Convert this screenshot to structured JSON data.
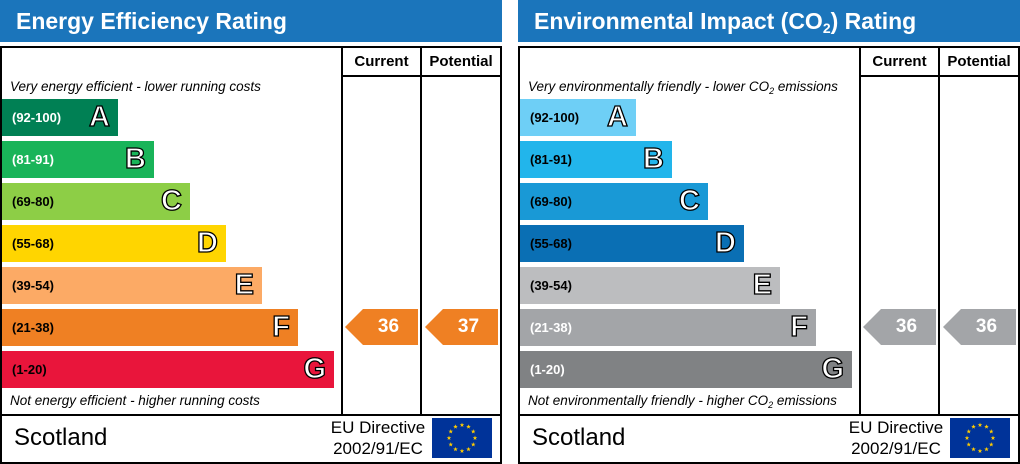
{
  "chart_data": [
    {
      "type": "bar",
      "title": "Energy Efficiency Rating",
      "columns": [
        "Current",
        "Potential"
      ],
      "top_note": "Very energy efficient - lower running costs",
      "bottom_note": "Not energy efficient - higher running costs",
      "categories": [
        "(92-100)",
        "(81-91)",
        "(69-80)",
        "(55-68)",
        "(39-54)",
        "(21-38)",
        "(1-20)"
      ],
      "bands": [
        {
          "range": "(92-100)",
          "letter": "A",
          "color": "#008054",
          "label_color": "#ffffff"
        },
        {
          "range": "(81-91)",
          "letter": "B",
          "color": "#19b459",
          "label_color": "#ffffff"
        },
        {
          "range": "(69-80)",
          "letter": "C",
          "color": "#8dce46",
          "label_color": "#000000"
        },
        {
          "range": "(55-68)",
          "letter": "D",
          "color": "#ffd500",
          "label_color": "#000000"
        },
        {
          "range": "(39-54)",
          "letter": "E",
          "color": "#fcaa65",
          "label_color": "#000000"
        },
        {
          "range": "(21-38)",
          "letter": "F",
          "color": "#ef8023",
          "label_color": "#000000"
        },
        {
          "range": "(1-20)",
          "letter": "G",
          "color": "#e9153b",
          "label_color": "#000000"
        }
      ],
      "current": {
        "value": 36,
        "band": "F",
        "color": "#ef8023"
      },
      "potential": {
        "value": 37,
        "band": "F",
        "color": "#ef8023"
      },
      "footer": {
        "country": "Scotland",
        "directive_line1": "EU Directive",
        "directive_line2": "2002/91/EC"
      }
    },
    {
      "type": "bar",
      "title_parts": [
        "Environmental Impact (CO",
        "2",
        ") Rating"
      ],
      "columns": [
        "Current",
        "Potential"
      ],
      "top_note_parts": [
        "Very environmentally friendly - lower CO",
        "2",
        " emissions"
      ],
      "bottom_note_parts": [
        "Not environmentally friendly - higher CO",
        "2",
        " emissions"
      ],
      "categories": [
        "(92-100)",
        "(81-91)",
        "(69-80)",
        "(55-68)",
        "(39-54)",
        "(21-38)",
        "(1-20)"
      ],
      "bands": [
        {
          "range": "(92-100)",
          "letter": "A",
          "color": "#6ecff6",
          "label_color": "#000000"
        },
        {
          "range": "(81-91)",
          "letter": "B",
          "color": "#22b5eb",
          "label_color": "#000000"
        },
        {
          "range": "(69-80)",
          "letter": "C",
          "color": "#1999d6",
          "label_color": "#000000"
        },
        {
          "range": "(55-68)",
          "letter": "D",
          "color": "#0a6fb4",
          "label_color": "#000000"
        },
        {
          "range": "(39-54)",
          "letter": "E",
          "color": "#bcbdbf",
          "label_color": "#000000"
        },
        {
          "range": "(21-38)",
          "letter": "F",
          "color": "#a3a5a8",
          "label_color": "#ffffff"
        },
        {
          "range": "(1-20)",
          "letter": "G",
          "color": "#808284",
          "label_color": "#ffffff"
        }
      ],
      "current": {
        "value": 36,
        "band": "F",
        "color": "#a3a5a8"
      },
      "potential": {
        "value": 36,
        "band": "F",
        "color": "#a3a5a8"
      },
      "footer": {
        "country": "Scotland",
        "directive_line1": "EU Directive",
        "directive_line2": "2002/91/EC"
      }
    }
  ],
  "colors": {
    "header_bg": "#1b75bb",
    "flag_bg": "#003399",
    "flag_stars": "#ffcc00"
  }
}
